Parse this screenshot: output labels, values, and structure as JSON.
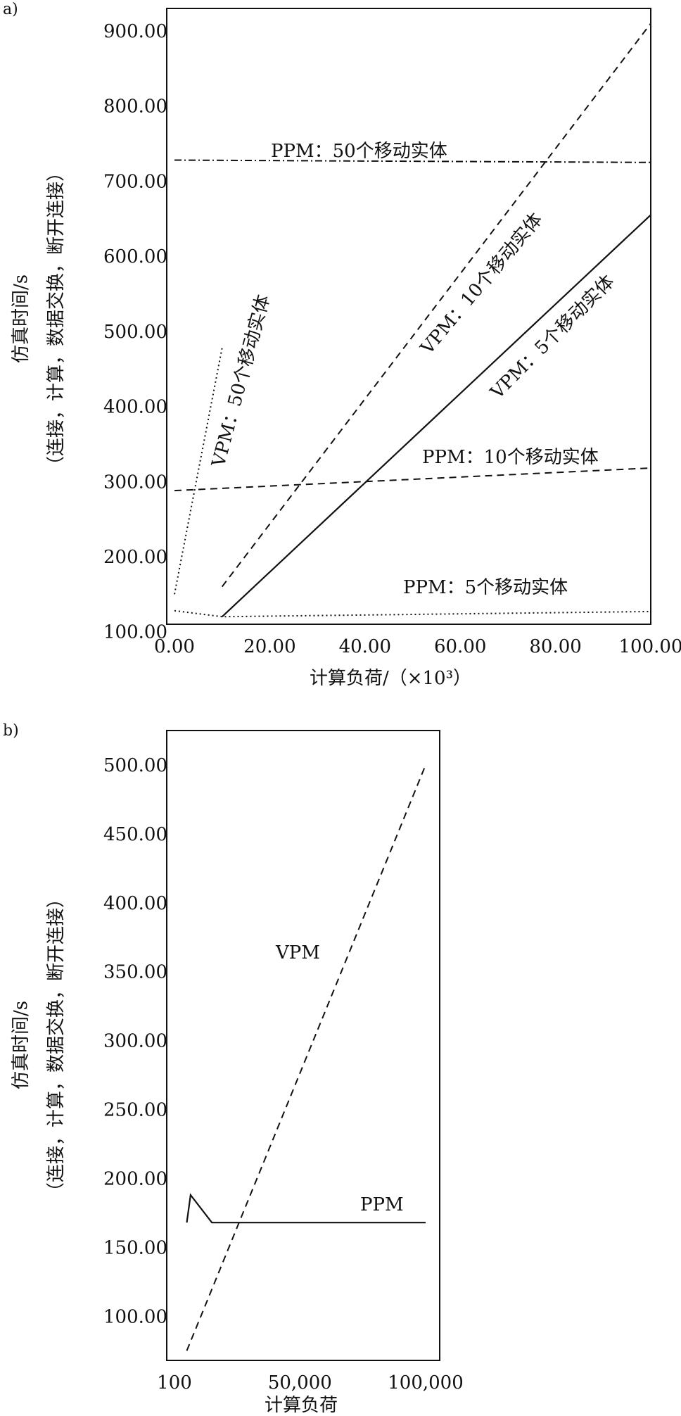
{
  "chart_data": [
    {
      "panel": "a)",
      "type": "line",
      "xlabel": "计算负荷/（×10³）",
      "ylabel_line1": "仿真时间/s",
      "ylabel_line2": "（连接，计算，数据交换，断开连接）",
      "xlim": [
        0,
        100
      ],
      "ylim": [
        110,
        930
      ],
      "x_ticks": [
        "0.00",
        "20.00",
        "40.00",
        "60.00",
        "80.00",
        "100.00"
      ],
      "y_ticks": [
        "100.00",
        "200.00",
        "300.00",
        "400.00",
        "500.00",
        "600.00",
        "700.00",
        "800.00",
        "900.00"
      ],
      "series": [
        {
          "name": "PPM：50个移动实体",
          "style": "dashdot",
          "x": [
            0,
            100
          ],
          "y": [
            728,
            725
          ]
        },
        {
          "name": "VPM：10个移动实体",
          "style": "dashed",
          "x": [
            10,
            100
          ],
          "y": [
            160,
            910
          ]
        },
        {
          "name": "VPM：5个移动实体",
          "style": "solid",
          "x": [
            10,
            100
          ],
          "y": [
            120,
            655
          ]
        },
        {
          "name": "VPM：50个移动实体",
          "style": "dotted",
          "x": [
            0,
            10
          ],
          "y": [
            150,
            478
          ]
        },
        {
          "name": "PPM：10个移动实体",
          "style": "dashed",
          "x": [
            0,
            100
          ],
          "y": [
            288,
            318
          ]
        },
        {
          "name": "PPM：5个移动实体",
          "style": "dotted",
          "x": [
            0,
            10,
            100
          ],
          "y": [
            128,
            120,
            127
          ]
        }
      ]
    },
    {
      "panel": "b)",
      "type": "line",
      "xlabel": "计算负荷",
      "ylabel_line1": "仿真时间/s",
      "ylabel_line2": "（连接，计算，数据交换，断开连接）",
      "xlim": [
        100,
        100000
      ],
      "ylim": [
        68,
        525
      ],
      "x_ticks": [
        "100",
        "50,000",
        "100,000"
      ],
      "y_ticks": [
        "100.00",
        "150.00",
        "200.00",
        "250.00",
        "300.00",
        "350.00",
        "400.00",
        "450.00",
        "500.00"
      ],
      "series": [
        {
          "name": "VPM",
          "style": "dashed",
          "x": [
            5000,
            100000
          ],
          "y": [
            75,
            500
          ]
        },
        {
          "name": "PPM",
          "style": "solid",
          "x": [
            5000,
            6500,
            15000,
            100000
          ],
          "y": [
            168,
            188,
            168,
            168
          ]
        }
      ]
    }
  ]
}
